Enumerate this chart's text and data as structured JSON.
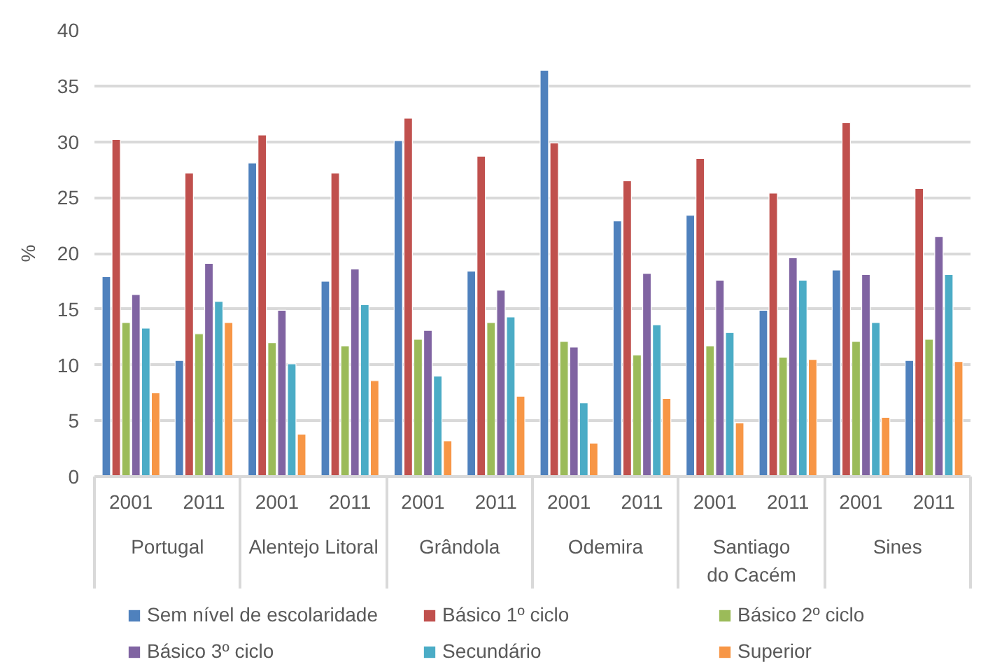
{
  "chart_data": {
    "type": "bar",
    "ylabel": "%",
    "categories": [
      "2001",
      "2011",
      "2001",
      "2011",
      "2001",
      "2011",
      "2001",
      "2011",
      "2001",
      "2011",
      "2001",
      "2011"
    ],
    "annotations": [
      "Portugal",
      "Alentejo Litoral",
      "Grândola",
      "Odemira",
      "Santiago do Cacém",
      "Sines"
    ],
    "series": [
      {
        "name": "Sem nível de escolaridade",
        "color": "#4f81bd",
        "values": [
          17.9,
          10.4,
          28.1,
          17.5,
          30.1,
          18.4,
          36.4,
          22.9,
          23.4,
          14.9,
          18.5,
          10.4
        ]
      },
      {
        "name": "Básico 1º ciclo",
        "color": "#c0504d",
        "values": [
          30.2,
          27.2,
          30.6,
          27.2,
          32.1,
          28.7,
          29.9,
          26.5,
          28.5,
          25.4,
          31.7,
          25.8
        ]
      },
      {
        "name": "Básico 2º ciclo",
        "color": "#9bbb59",
        "values": [
          13.8,
          12.8,
          12.0,
          11.7,
          12.3,
          13.8,
          12.1,
          10.9,
          11.7,
          10.7,
          12.1,
          12.3
        ]
      },
      {
        "name": "Básico 3º ciclo",
        "color": "#8064a2",
        "values": [
          16.3,
          19.1,
          14.9,
          18.6,
          13.1,
          16.7,
          11.6,
          18.2,
          17.6,
          19.6,
          18.1,
          21.5
        ]
      },
      {
        "name": "Secundário",
        "color": "#4bacc6",
        "values": [
          13.3,
          15.7,
          10.1,
          15.4,
          9.0,
          14.3,
          6.6,
          13.6,
          12.9,
          17.6,
          13.8,
          18.1
        ]
      },
      {
        "name": "Superior",
        "color": "#f79646",
        "values": [
          7.5,
          13.8,
          3.8,
          8.6,
          3.2,
          7.2,
          3.0,
          7.0,
          4.8,
          10.5,
          5.3,
          10.3
        ]
      }
    ],
    "ylim": [
      0,
      40
    ],
    "yticks": [
      0,
      5,
      10,
      15,
      20,
      25,
      30,
      35,
      40
    ],
    "grid": "y",
    "legend": "bottom"
  }
}
